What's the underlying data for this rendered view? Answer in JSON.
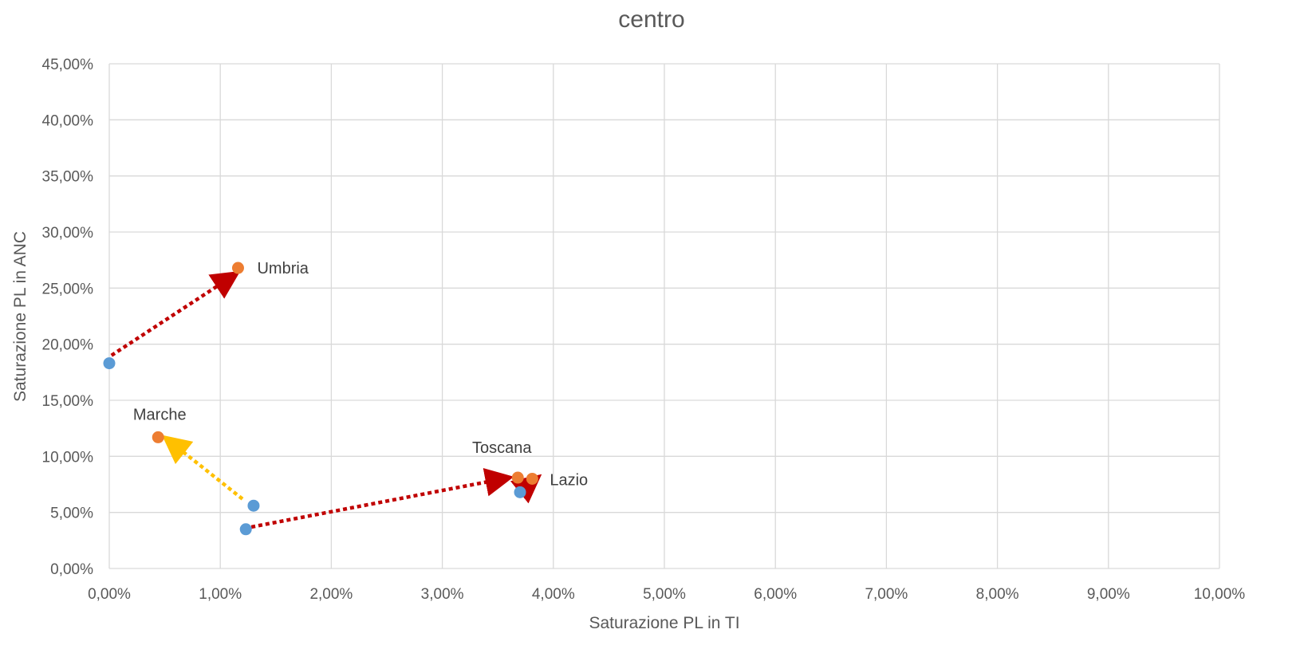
{
  "chart_data": {
    "type": "scatter",
    "title": "centro",
    "xlabel": "Saturazione PL in TI",
    "ylabel": "Saturazione PL in ANC",
    "xlim": [
      0,
      10
    ],
    "ylim": [
      0,
      45
    ],
    "x_ticks": [
      "0,00%",
      "1,00%",
      "2,00%",
      "3,00%",
      "4,00%",
      "5,00%",
      "6,00%",
      "7,00%",
      "8,00%",
      "9,00%",
      "10,00%"
    ],
    "y_ticks": [
      "0,00%",
      "5,00%",
      "10,00%",
      "15,00%",
      "20,00%",
      "25,00%",
      "30,00%",
      "35,00%",
      "40,00%",
      "45,00%"
    ],
    "grid": true,
    "legend": "none",
    "series": [
      {
        "color": "#5b9bd5",
        "points": [
          {
            "x": 0.0,
            "y": 18.3
          },
          {
            "x": 1.3,
            "y": 5.6
          },
          {
            "x": 1.23,
            "y": 3.5
          },
          {
            "x": 3.7,
            "y": 6.8
          }
        ]
      },
      {
        "color": "#ed7d31",
        "points": [
          {
            "x": 1.16,
            "y": 26.8,
            "label": "Umbria"
          },
          {
            "x": 0.44,
            "y": 11.7,
            "label": "Marche"
          },
          {
            "x": 3.68,
            "y": 8.1,
            "label": "Toscana"
          },
          {
            "x": 3.81,
            "y": 8.0,
            "label": "Lazio"
          }
        ]
      }
    ],
    "arrows": [
      {
        "from": [
          0.02,
          19.0
        ],
        "to": [
          1.1,
          26.0
        ],
        "color": "#c00000"
      },
      {
        "from": [
          1.2,
          6.2
        ],
        "to": [
          0.55,
          11.3
        ],
        "color": "#ffc000"
      },
      {
        "from": [
          1.28,
          3.7
        ],
        "to": [
          3.55,
          8.0
        ],
        "color": "#c00000"
      },
      {
        "from": [
          3.72,
          7.0
        ],
        "to": [
          3.82,
          7.8
        ],
        "color": "#c00000"
      }
    ]
  }
}
